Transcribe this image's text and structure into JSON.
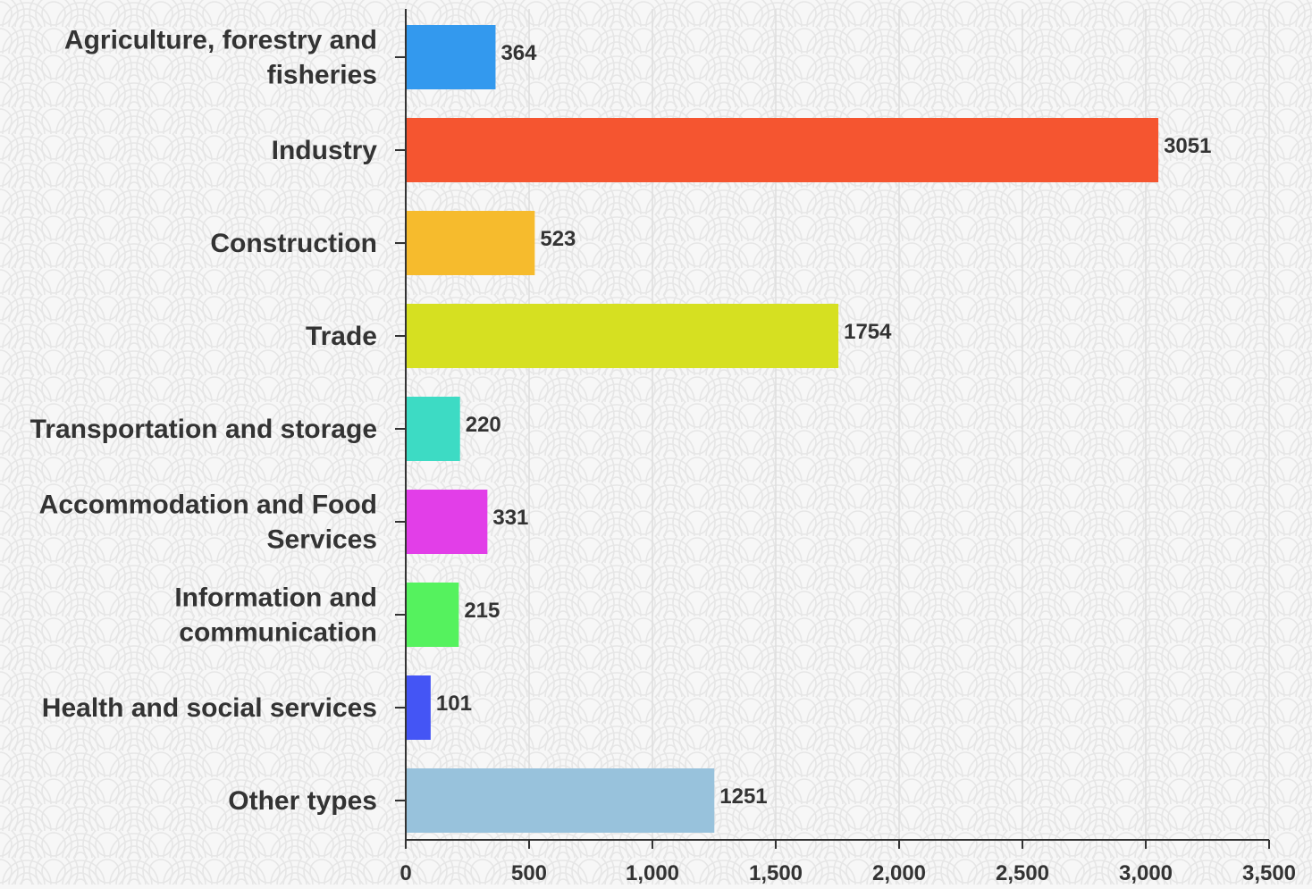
{
  "chart_data": {
    "type": "bar",
    "orientation": "horizontal",
    "categories": [
      [
        "Agriculture, forestry and",
        "fisheries"
      ],
      [
        "Industry"
      ],
      [
        "Construction"
      ],
      [
        "Trade"
      ],
      [
        "Transportation and storage"
      ],
      [
        "Accommodation and Food",
        "Services"
      ],
      [
        "Information and",
        "communication"
      ],
      [
        "Health and social services"
      ],
      [
        "Other types"
      ]
    ],
    "values": [
      364,
      3051,
      523,
      1754,
      220,
      331,
      215,
      101,
      1251
    ],
    "value_labels": [
      "364",
      "3051",
      "523",
      "1754",
      "220",
      "331",
      "215",
      "101",
      "1251"
    ],
    "colors": [
      "#3399ee",
      "#f55530",
      "#f6bb2d",
      "#d6e021",
      "#3ddbc4",
      "#e23ee8",
      "#55f25e",
      "#4455f5",
      "#98c2dc"
    ],
    "xlim": [
      0,
      3500
    ],
    "xticks": [
      0,
      500,
      1000,
      1500,
      2000,
      2500,
      3000,
      3500
    ],
    "xtick_labels": [
      "0",
      "500",
      "1,000",
      "1,500",
      "2,000",
      "2,500",
      "3,000",
      "3,500"
    ],
    "grid": true,
    "title": "",
    "xlabel": "",
    "ylabel": ""
  }
}
